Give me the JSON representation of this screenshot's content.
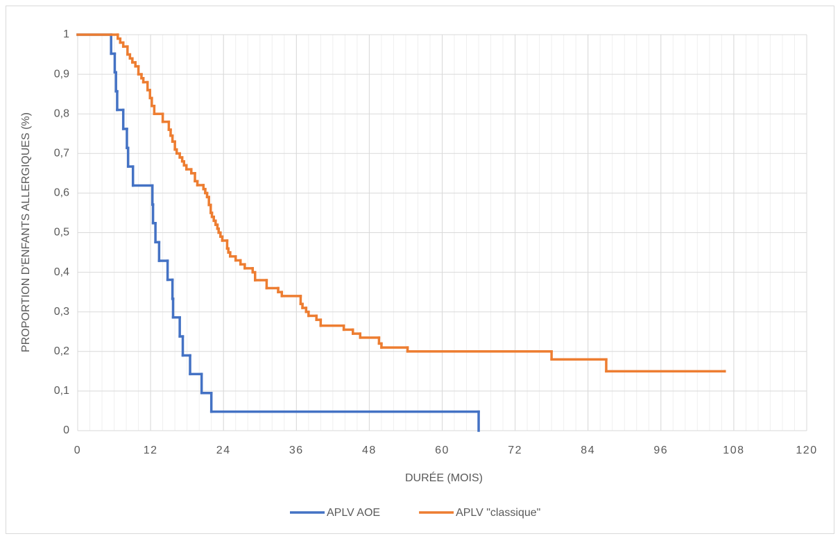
{
  "chart_data": {
    "type": "step",
    "xlabel": "DURÉE (MOIS)",
    "ylabel": "PROPORTION D'ENFANTS ALLERGIQUES (%)",
    "xlim": [
      0,
      120
    ],
    "xticks": [
      0,
      12,
      24,
      36,
      48,
      60,
      72,
      84,
      96,
      108,
      120
    ],
    "x_minor_step": 2,
    "ylim": [
      0,
      1
    ],
    "yticks": [
      0,
      {
        "value": 0.1,
        "label": "0,1"
      },
      {
        "value": 0.2,
        "label": "0,2"
      },
      {
        "value": 0.3,
        "label": "0,3"
      },
      {
        "value": 0.4,
        "label": "0,4"
      },
      {
        "value": 0.5,
        "label": "0,5"
      },
      {
        "value": 0.6,
        "label": "0,6"
      },
      {
        "value": 0.7,
        "label": "0,7"
      },
      {
        "value": 0.8,
        "label": "0,8"
      },
      {
        "value": 0.9,
        "label": "0,9"
      },
      1
    ],
    "grid": true,
    "legend": "bottom",
    "series": [
      {
        "name": "APLV AOE",
        "color": "#4472c4",
        "x": [
          0,
          5.5,
          6.1,
          6.3,
          6.5,
          7.5,
          8.1,
          8.3,
          9.1,
          12.3,
          12.4,
          12.8,
          13.4,
          14.8,
          15.6,
          15.7,
          16.8,
          17.3,
          18.5,
          20.4,
          22.0,
          66.0
        ],
        "values": [
          1,
          0.952,
          0.905,
          0.857,
          0.81,
          0.762,
          0.714,
          0.667,
          0.619,
          0.571,
          0.524,
          0.476,
          0.429,
          0.381,
          0.333,
          0.286,
          0.238,
          0.19,
          0.143,
          0.095,
          0.048,
          0
        ]
      },
      {
        "name": "APLV \"classique\"",
        "color": "#ed7d31",
        "x": [
          0,
          6.6,
          7.0,
          7.5,
          8.2,
          8.6,
          9.0,
          9.5,
          10.0,
          10.5,
          10.8,
          11.5,
          11.9,
          12.2,
          12.6,
          14.0,
          15.0,
          15.3,
          15.6,
          16.0,
          16.3,
          16.8,
          17.2,
          17.5,
          17.9,
          18.7,
          19.3,
          19.7,
          20.7,
          21.0,
          21.3,
          21.6,
          21.9,
          22.1,
          22.4,
          22.7,
          23.0,
          23.2,
          23.5,
          23.8,
          24.6,
          24.8,
          25.1,
          26.0,
          26.8,
          27.5,
          28.8,
          29.2,
          31.1,
          33.0,
          33.6,
          36.7,
          37.0,
          37.6,
          38.0,
          39.3,
          40.0,
          43.8,
          45.3,
          46.5,
          49.6,
          50.0,
          54.3,
          78.0,
          87.0,
          106.5
        ],
        "values": [
          1,
          0.99,
          0.98,
          0.97,
          0.95,
          0.94,
          0.93,
          0.92,
          0.9,
          0.89,
          0.88,
          0.86,
          0.84,
          0.82,
          0.8,
          0.78,
          0.76,
          0.745,
          0.73,
          0.71,
          0.7,
          0.69,
          0.68,
          0.67,
          0.66,
          0.65,
          0.63,
          0.62,
          0.61,
          0.6,
          0.59,
          0.57,
          0.55,
          0.54,
          0.53,
          0.52,
          0.51,
          0.5,
          0.49,
          0.48,
          0.46,
          0.45,
          0.44,
          0.43,
          0.42,
          0.41,
          0.4,
          0.38,
          0.36,
          0.35,
          0.34,
          0.32,
          0.31,
          0.3,
          0.29,
          0.28,
          0.265,
          0.255,
          0.245,
          0.235,
          0.22,
          0.21,
          0.2,
          0.18,
          0.15,
          0.15
        ]
      }
    ]
  }
}
